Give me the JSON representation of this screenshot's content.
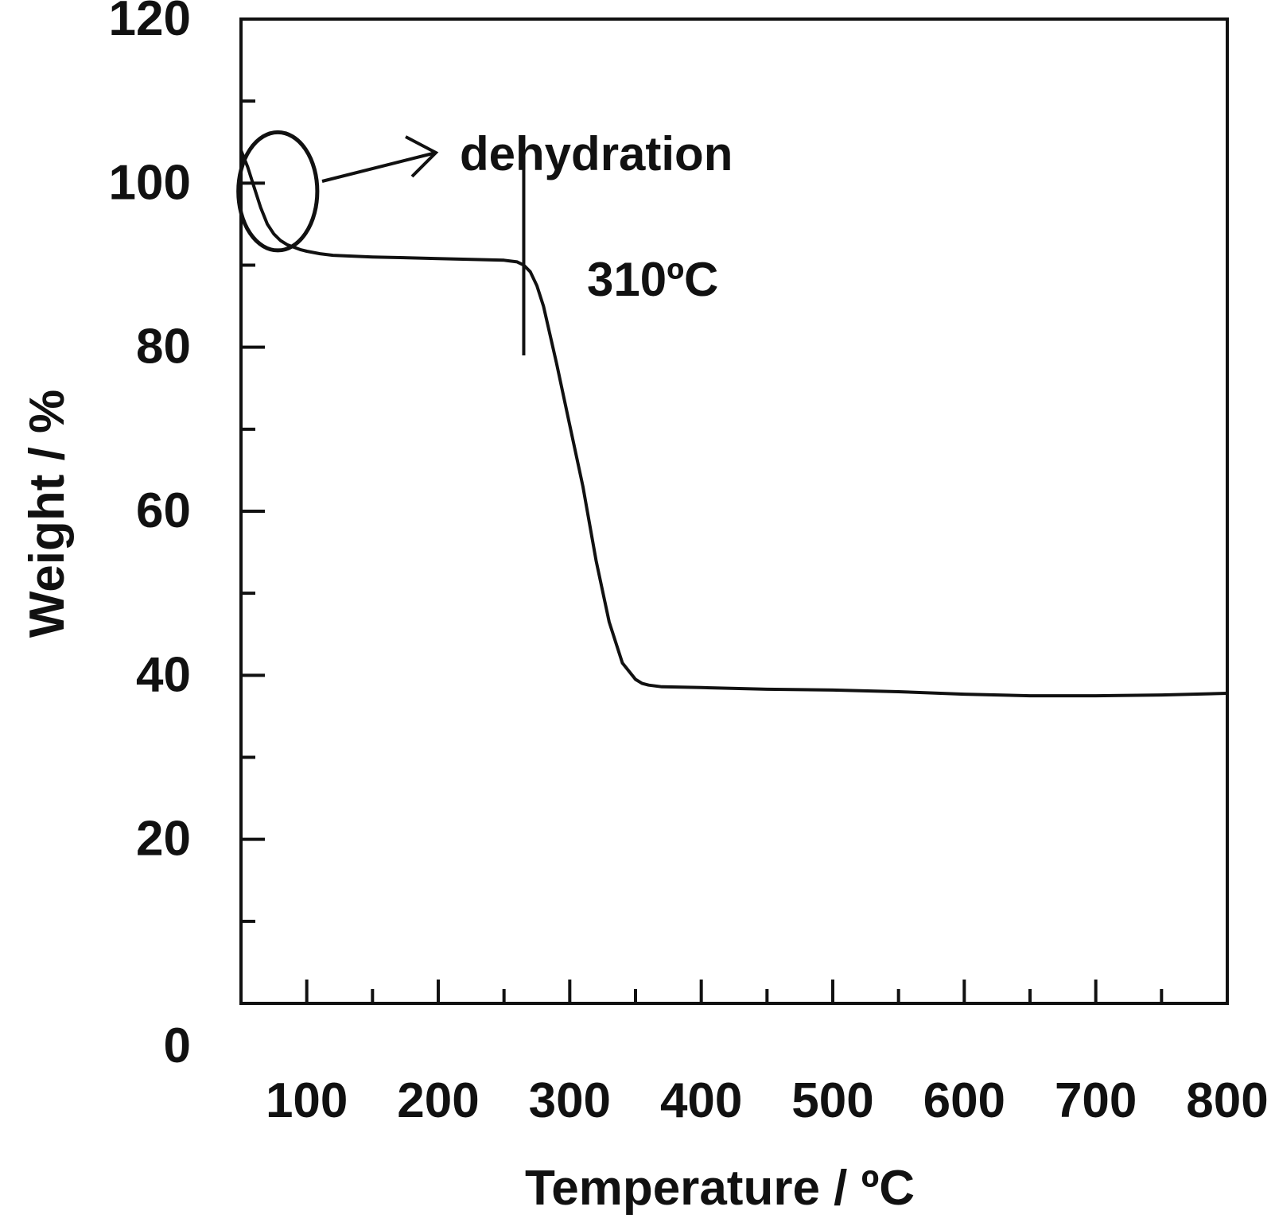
{
  "chart_data": {
    "type": "line",
    "title": "",
    "xlabel": "Temperature / ºC",
    "ylabel": "Weight / %",
    "xlim": [
      50,
      800
    ],
    "ylim": [
      0,
      120
    ],
    "x_ticks": [
      100,
      200,
      300,
      400,
      500,
      600,
      700,
      800
    ],
    "y_ticks": [
      0,
      20,
      40,
      60,
      80,
      100,
      120
    ],
    "grid": false,
    "legend": "none",
    "line_color": "#111111",
    "series": [
      {
        "x": [
          50,
          55,
          60,
          65,
          70,
          75,
          80,
          85,
          90,
          95,
          100,
          110,
          120,
          150,
          200,
          250,
          260,
          265,
          270,
          275,
          280,
          290,
          300,
          310,
          320,
          330,
          340,
          350,
          355,
          360,
          370,
          400,
          450,
          500,
          550,
          600,
          650,
          700,
          750,
          800
        ],
        "y": [
          104,
          102,
          99.5,
          97,
          95,
          93.8,
          93,
          92.5,
          92.2,
          91.9,
          91.7,
          91.4,
          91.2,
          91.0,
          90.8,
          90.6,
          90.4,
          90.0,
          89.2,
          87.5,
          85.0,
          78.0,
          70.5,
          63.0,
          54.0,
          46.5,
          41.5,
          39.5,
          39.0,
          38.8,
          38.6,
          38.5,
          38.3,
          38.2,
          38.0,
          37.7,
          37.5,
          37.5,
          37.6,
          37.8
        ]
      }
    ],
    "annotations": {
      "dehydration_label": "dehydration",
      "onset_label": "310ºC",
      "onset_marker_x": 265,
      "onset_marker_y_range": [
        79,
        104
      ],
      "ellipse_center": [
        78,
        99
      ],
      "ellipse_radius_data": [
        30,
        7.2
      ]
    }
  }
}
